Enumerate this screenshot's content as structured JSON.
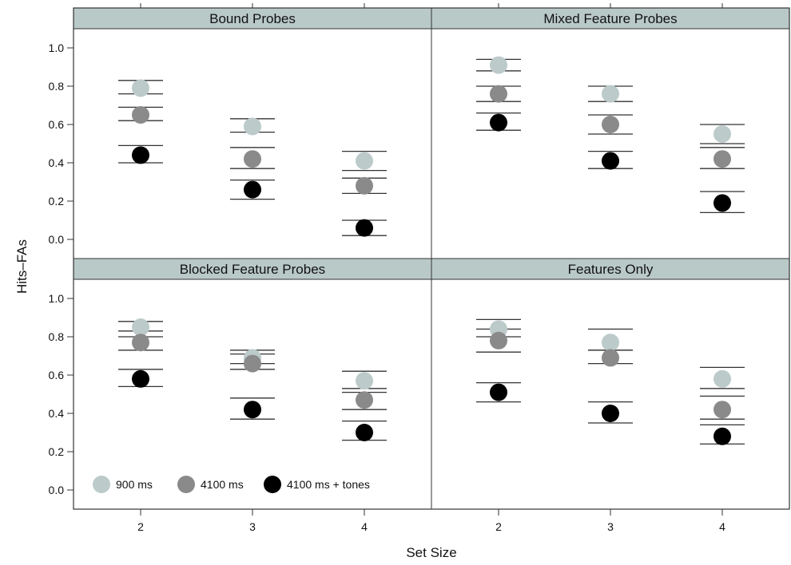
{
  "chart_data": {
    "type": "scatter",
    "xlabel": "Set Size",
    "ylabel": "Hits–FAs",
    "x_ticks": [
      "2",
      "3",
      "4"
    ],
    "y_ticks": [
      "0.0",
      "0.2",
      "0.4",
      "0.6",
      "0.8",
      "1.0"
    ],
    "ylim": [
      -0.1,
      1.1
    ],
    "grid": false,
    "legend_position": "bottom-left of Blocked Feature Probes panel",
    "colors": {
      "900 ms": "#bccaca",
      "4100 ms": "#8a8a8a",
      "4100 ms + tones": "#000000",
      "strip": "#b9c9c8"
    },
    "series": [
      {
        "name": "900 ms"
      },
      {
        "name": "4100 ms"
      },
      {
        "name": "4100 ms + tones"
      }
    ],
    "panels": [
      {
        "title": "Bound Probes",
        "points": [
          {
            "series": "900 ms",
            "x": 2,
            "y": 0.79,
            "err": [
              0.76,
              0.83
            ]
          },
          {
            "series": "4100 ms",
            "x": 2,
            "y": 0.65,
            "err": [
              0.62,
              0.69
            ]
          },
          {
            "series": "4100 ms + tones",
            "x": 2,
            "y": 0.44,
            "err": [
              0.4,
              0.49
            ]
          },
          {
            "series": "900 ms",
            "x": 3,
            "y": 0.59,
            "err": [
              0.56,
              0.63
            ]
          },
          {
            "series": "4100 ms",
            "x": 3,
            "y": 0.42,
            "err": [
              0.37,
              0.48
            ]
          },
          {
            "series": "4100 ms + tones",
            "x": 3,
            "y": 0.26,
            "err": [
              0.21,
              0.31
            ]
          },
          {
            "series": "900 ms",
            "x": 4,
            "y": 0.41,
            "err": [
              0.36,
              0.46
            ]
          },
          {
            "series": "4100 ms",
            "x": 4,
            "y": 0.28,
            "err": [
              0.24,
              0.32
            ]
          },
          {
            "series": "4100 ms + tones",
            "x": 4,
            "y": 0.06,
            "err": [
              0.02,
              0.1
            ]
          }
        ]
      },
      {
        "title": "Mixed Feature Probes",
        "points": [
          {
            "series": "900 ms",
            "x": 2,
            "y": 0.91,
            "err": [
              0.88,
              0.94
            ]
          },
          {
            "series": "4100 ms",
            "x": 2,
            "y": 0.76,
            "err": [
              0.72,
              0.8
            ]
          },
          {
            "series": "4100 ms + tones",
            "x": 2,
            "y": 0.61,
            "err": [
              0.57,
              0.66
            ]
          },
          {
            "series": "900 ms",
            "x": 3,
            "y": 0.76,
            "err": [
              0.72,
              0.8
            ]
          },
          {
            "series": "4100 ms",
            "x": 3,
            "y": 0.6,
            "err": [
              0.55,
              0.65
            ]
          },
          {
            "series": "4100 ms + tones",
            "x": 3,
            "y": 0.41,
            "err": [
              0.37,
              0.46
            ]
          },
          {
            "series": "900 ms",
            "x": 4,
            "y": 0.55,
            "err": [
              0.5,
              0.6
            ]
          },
          {
            "series": "4100 ms",
            "x": 4,
            "y": 0.42,
            "err": [
              0.37,
              0.48
            ]
          },
          {
            "series": "4100 ms + tones",
            "x": 4,
            "y": 0.19,
            "err": [
              0.14,
              0.25
            ]
          }
        ]
      },
      {
        "title": "Blocked Feature Probes",
        "points": [
          {
            "series": "900 ms",
            "x": 2,
            "y": 0.85,
            "err": [
              0.83,
              0.88
            ]
          },
          {
            "series": "4100 ms",
            "x": 2,
            "y": 0.77,
            "err": [
              0.73,
              0.8
            ]
          },
          {
            "series": "4100 ms + tones",
            "x": 2,
            "y": 0.58,
            "err": [
              0.54,
              0.63
            ]
          },
          {
            "series": "900 ms",
            "x": 3,
            "y": 0.69,
            "err": [
              0.66,
              0.73
            ]
          },
          {
            "series": "4100 ms",
            "x": 3,
            "y": 0.66,
            "err": [
              0.63,
              0.71
            ]
          },
          {
            "series": "4100 ms + tones",
            "x": 3,
            "y": 0.42,
            "err": [
              0.37,
              0.48
            ]
          },
          {
            "series": "900 ms",
            "x": 4,
            "y": 0.57,
            "err": [
              0.53,
              0.62
            ]
          },
          {
            "series": "4100 ms",
            "x": 4,
            "y": 0.47,
            "err": [
              0.42,
              0.51
            ]
          },
          {
            "series": "4100 ms + tones",
            "x": 4,
            "y": 0.3,
            "err": [
              0.26,
              0.36
            ]
          }
        ]
      },
      {
        "title": "Features Only",
        "points": [
          {
            "series": "900 ms",
            "x": 2,
            "y": 0.84,
            "err": [
              0.8,
              0.89
            ]
          },
          {
            "series": "4100 ms",
            "x": 2,
            "y": 0.78,
            "err": [
              0.72,
              0.84
            ]
          },
          {
            "series": "4100 ms + tones",
            "x": 2,
            "y": 0.51,
            "err": [
              0.46,
              0.56
            ]
          },
          {
            "series": "900 ms",
            "x": 3,
            "y": 0.77,
            "err": [
              0.73,
              0.84
            ]
          },
          {
            "series": "4100 ms",
            "x": 3,
            "y": 0.69,
            "err": [
              0.66,
              0.73
            ]
          },
          {
            "series": "4100 ms + tones",
            "x": 3,
            "y": 0.4,
            "err": [
              0.35,
              0.46
            ]
          },
          {
            "series": "900 ms",
            "x": 4,
            "y": 0.58,
            "err": [
              0.53,
              0.64
            ]
          },
          {
            "series": "4100 ms",
            "x": 4,
            "y": 0.42,
            "err": [
              0.37,
              0.49
            ]
          },
          {
            "series": "4100 ms + tones",
            "x": 4,
            "y": 0.28,
            "err": [
              0.24,
              0.34
            ]
          }
        ]
      }
    ]
  }
}
